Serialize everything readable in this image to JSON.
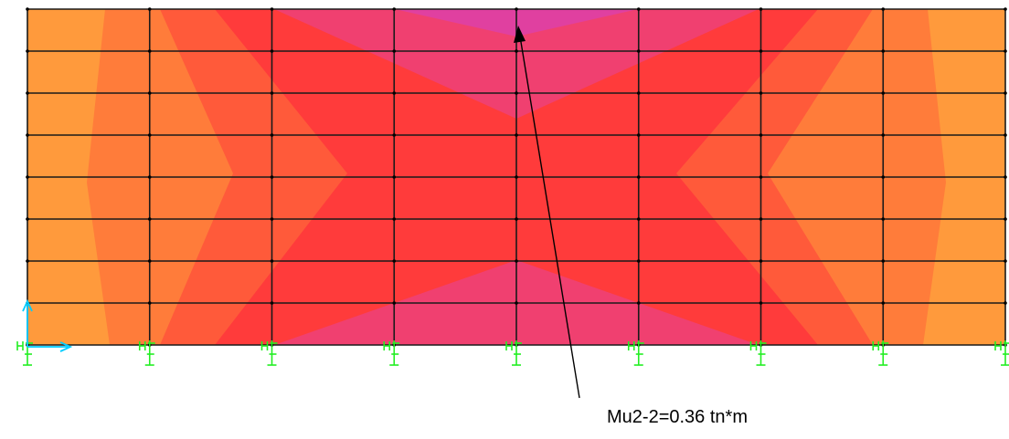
{
  "grid": {
    "columns": 8,
    "rows": 8
  },
  "colors": {
    "orange": "#ff9a3c",
    "dark_orange": "#ff7c3a",
    "red_orange": "#ff5a3a",
    "red": "#ff3b3b",
    "magenta_red": "#f04070",
    "magenta": "#e040a0",
    "grid_line": "#1a1a1a",
    "support": "#22ee22",
    "axis": "#00ccff"
  },
  "annotation": {
    "label": "Mu2-2=0.36 tn*m"
  }
}
